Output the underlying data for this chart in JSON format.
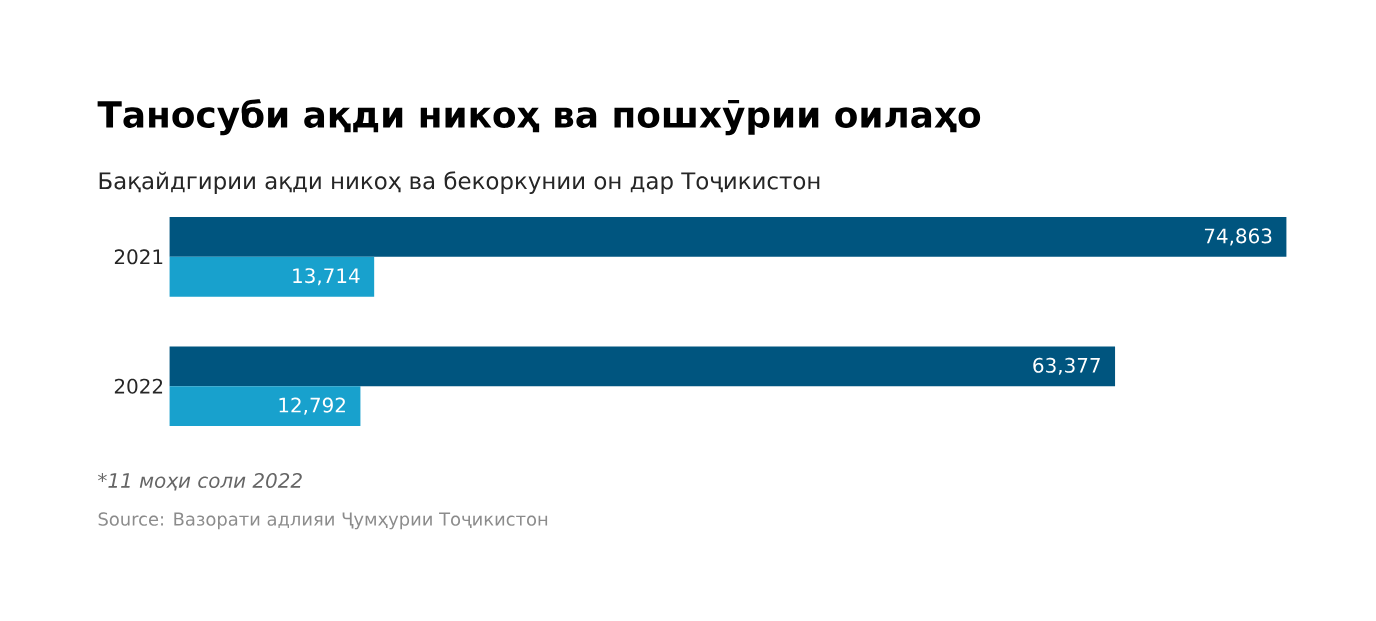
{
  "chart_data": {
    "type": "bar",
    "orientation": "horizontal",
    "title": "Таносуби ақди никоҳ ва пошхӯрии оилаҳо",
    "subtitle": "Бақайдгирии ақди никоҳ ва бекоркунии он дар Тоҷикистон",
    "categories": [
      "2021",
      "2022"
    ],
    "series": [
      {
        "color": "#00557f",
        "values": [
          74863,
          63377
        ],
        "value_labels": [
          "74,863",
          "63,377"
        ]
      },
      {
        "color": "#18a1cd",
        "values": [
          13714,
          12792
        ],
        "value_labels": [
          "13,714",
          "12,792"
        ]
      }
    ],
    "annotations": [
      "*11 моҳи соли 2022",
      "Source: Вазорати адлияи Ҷумҳурии Тоҷикистон"
    ]
  }
}
